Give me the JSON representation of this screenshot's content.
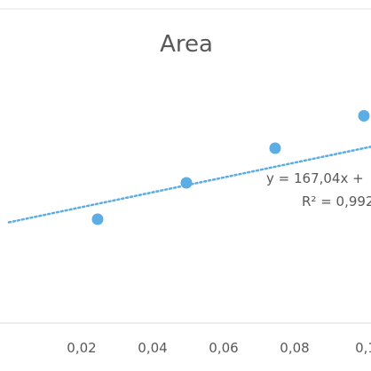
{
  "chart_data": {
    "type": "scatter",
    "title": "Area",
    "xlabel": "",
    "ylabel": "",
    "xlim": [
      0.0,
      0.1
    ],
    "x_ticks": [
      "0,02",
      "0,04",
      "0,06",
      "0,08",
      "0,1"
    ],
    "x_tick_values": [
      0.02,
      0.04,
      0.06,
      0.08,
      0.1
    ],
    "grid": false,
    "series": [
      {
        "x": [
          0.025,
          0.05,
          0.075,
          0.1
        ],
        "y": [
          -8.2,
          0.0,
          7.8,
          15.1
        ],
        "color": "#5BADE3",
        "trendline": {
          "type": "linear",
          "style": "dotted",
          "slope": 167.04,
          "intercept": -8.9
        }
      }
    ],
    "annotations": [
      "y = 167,04x +",
      "R² = 0,992"
    ]
  }
}
